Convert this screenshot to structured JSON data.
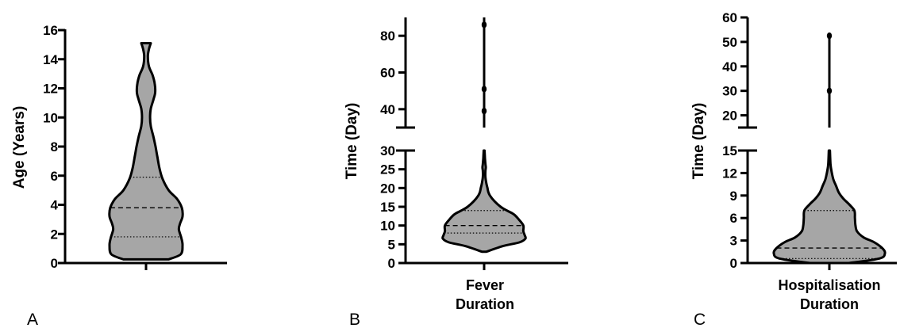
{
  "chart_data": [
    {
      "type": "violin",
      "panel": "A",
      "ylabel": "Age (Years)",
      "categories": [
        ""
      ],
      "ylim": [
        0,
        16
      ],
      "yticks": [
        0,
        2,
        4,
        6,
        8,
        10,
        12,
        14,
        16
      ],
      "median": 3.8,
      "quartiles": [
        1.8,
        5.9
      ],
      "min": 0.25,
      "max": 15.1,
      "density": [
        [
          0.25,
          0.62
        ],
        [
          0.6,
          0.95
        ],
        [
          1.2,
          1.0
        ],
        [
          1.7,
          0.97
        ],
        [
          2.3,
          0.9
        ],
        [
          2.7,
          0.93
        ],
        [
          3.2,
          1.0
        ],
        [
          3.8,
          0.98
        ],
        [
          4.4,
          0.85
        ],
        [
          5.0,
          0.62
        ],
        [
          5.8,
          0.45
        ],
        [
          6.5,
          0.37
        ],
        [
          7.3,
          0.31
        ],
        [
          8.0,
          0.26
        ],
        [
          8.7,
          0.2
        ],
        [
          9.4,
          0.13
        ],
        [
          10.0,
          0.11
        ],
        [
          10.6,
          0.13
        ],
        [
          11.2,
          0.2
        ],
        [
          11.7,
          0.25
        ],
        [
          12.3,
          0.24
        ],
        [
          12.9,
          0.18
        ],
        [
          13.5,
          0.08
        ],
        [
          14.2,
          0.05
        ],
        [
          14.7,
          0.08
        ],
        [
          15.1,
          0.13
        ]
      ]
    },
    {
      "type": "violin",
      "panel": "B",
      "ylabel": "Time (Day)",
      "categories": [
        "Fever",
        "Duration"
      ],
      "axis_break": true,
      "ylim_lower": [
        0,
        30
      ],
      "yticks_lower": [
        0,
        5,
        10,
        15,
        20,
        25,
        30
      ],
      "ylim_upper": [
        30,
        90
      ],
      "yticks_upper": [
        40,
        60,
        80
      ],
      "median": 10,
      "quartiles": [
        8,
        14
      ],
      "min": 3,
      "density": [
        [
          3,
          0.05
        ],
        [
          4.5,
          0.45
        ],
        [
          5.5,
          0.85
        ],
        [
          6.5,
          1.0
        ],
        [
          7.5,
          0.98
        ],
        [
          8.5,
          0.95
        ],
        [
          10,
          0.95
        ],
        [
          11.5,
          0.85
        ],
        [
          13,
          0.72
        ],
        [
          14,
          0.55
        ],
        [
          15,
          0.4
        ],
        [
          16.5,
          0.25
        ],
        [
          18,
          0.14
        ],
        [
          19,
          0.1
        ],
        [
          20,
          0.08
        ],
        [
          21.5,
          0.05
        ],
        [
          23,
          0.03
        ],
        [
          24.5,
          0.03
        ],
        [
          25.5,
          0.04
        ],
        [
          26.5,
          0.03
        ],
        [
          28,
          0.02
        ],
        [
          30,
          0.01
        ]
      ],
      "outliers": [
        39,
        51,
        86
      ],
      "outlier_line_range": [
        30,
        90
      ]
    },
    {
      "type": "violin",
      "panel": "C",
      "ylabel": "Time (Day)",
      "categories": [
        "Hospitalisation",
        "Duration"
      ],
      "axis_break": true,
      "ylim_lower": [
        0,
        15
      ],
      "yticks_lower": [
        0,
        3,
        6,
        9,
        12,
        15
      ],
      "ylim_upper": [
        15,
        60
      ],
      "yticks_upper": [
        20,
        30,
        40,
        50,
        60
      ],
      "median": 2,
      "quartiles": [
        0.6,
        7
      ],
      "min": 0,
      "density": [
        [
          0,
          0.35
        ],
        [
          0.6,
          0.9
        ],
        [
          1.3,
          1.0
        ],
        [
          2.0,
          0.95
        ],
        [
          2.8,
          0.8
        ],
        [
          3.4,
          0.62
        ],
        [
          4.2,
          0.5
        ],
        [
          5.0,
          0.47
        ],
        [
          6.0,
          0.46
        ],
        [
          7.0,
          0.45
        ],
        [
          7.8,
          0.36
        ],
        [
          8.6,
          0.25
        ],
        [
          9.4,
          0.17
        ],
        [
          10.3,
          0.12
        ],
        [
          11.2,
          0.07
        ],
        [
          12.2,
          0.04
        ],
        [
          13.2,
          0.02
        ],
        [
          15,
          0.01
        ]
      ],
      "outliers": [
        30,
        52.5
      ],
      "outlier_line_range": [
        15,
        53
      ]
    }
  ]
}
